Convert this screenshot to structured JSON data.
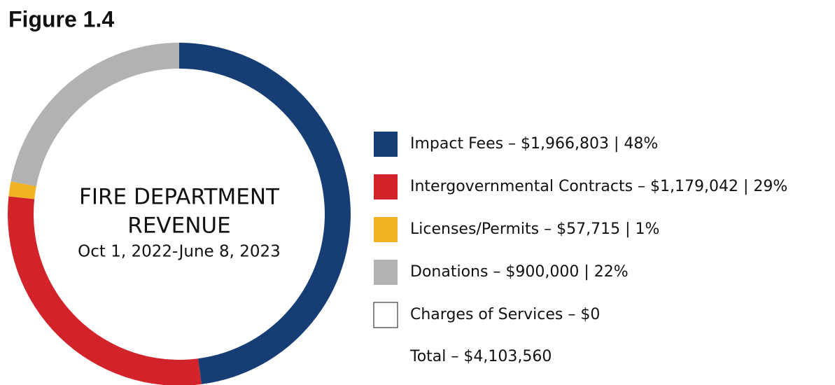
{
  "figure_label": "Figure 1.4",
  "chart_data": {
    "type": "donut",
    "title": [
      "FIRE DEPARTMENT",
      "REVENUE"
    ],
    "subtitle": "Oct 1, 2022-June 8, 2023",
    "categories": [
      "Impact Fees – $1,966,803 | 48%",
      "Intergovernmental Contracts – $1,179,042 | 29%",
      "Licenses/Permits – $57,715 | 1%",
      "Donations – $900,000 | 22%",
      "Charges of Services – $0"
    ],
    "values": [
      1966803,
      1179042,
      57715,
      900000,
      0
    ],
    "colors": [
      "#173e74",
      "#d2232a",
      "#f0b323",
      "#b1b3b2",
      "#ffffff"
    ],
    "total_label": "Total – $4,103,560"
  }
}
